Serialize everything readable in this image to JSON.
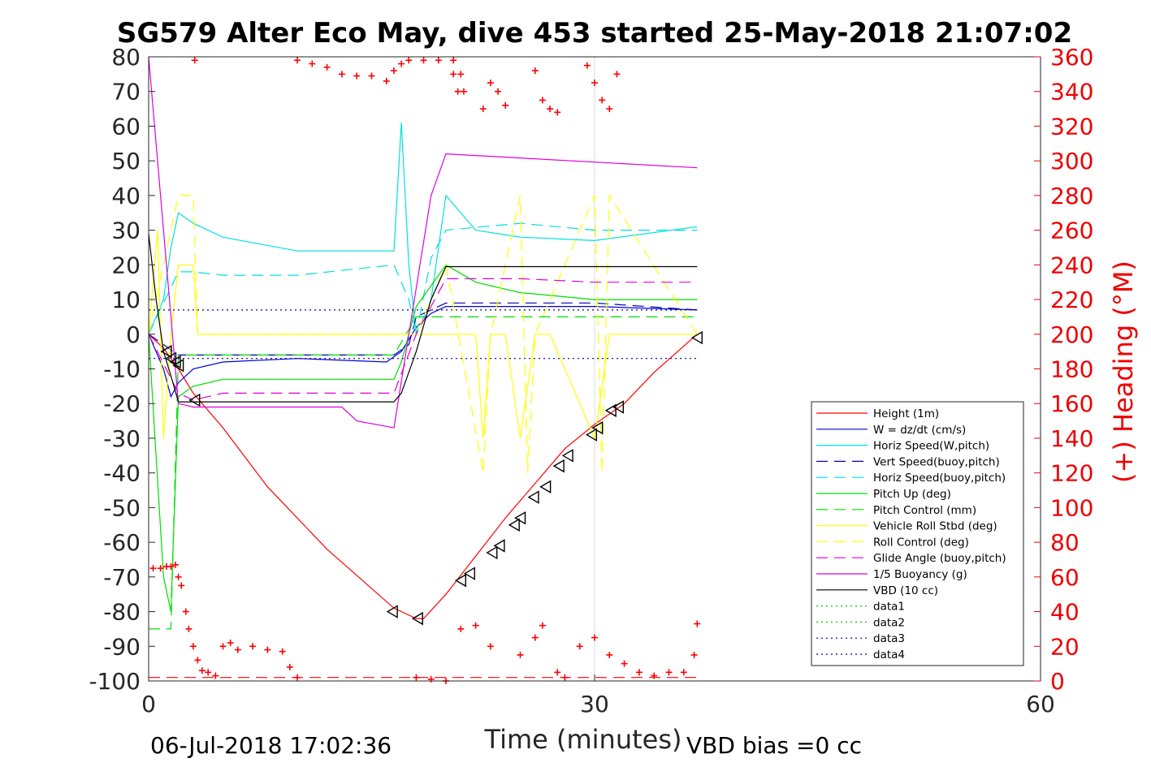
{
  "chart_data": {
    "type": "line",
    "title": "SG579 Alter Eco May, dive 453 started 25-May-2018 21:07:02",
    "xlabel": "Time (minutes)",
    "ylabel": "",
    "y2label": "(+) Heading (°M)",
    "xlim": [
      0,
      60
    ],
    "ylim": [
      -100,
      80
    ],
    "y2lim": [
      0,
      360
    ],
    "xticks": [
      0,
      30,
      60
    ],
    "yticks": [
      -100,
      -90,
      -80,
      -70,
      -60,
      -50,
      -40,
      -30,
      -20,
      -10,
      0,
      10,
      20,
      30,
      40,
      50,
      60,
      70,
      80
    ],
    "y2ticks": [
      0,
      20,
      40,
      60,
      80,
      100,
      120,
      140,
      160,
      180,
      200,
      220,
      240,
      260,
      280,
      300,
      320,
      340,
      360
    ],
    "grid": "x-only",
    "legend_position": "lower-right",
    "footer_left": "06-Jul-2018 17:02:36",
    "footer_right": "VBD bias =0 cc",
    "series": [
      {
        "name": "Height (1m)",
        "color": "#ff0000",
        "style": "solid",
        "axis": "left",
        "x": [
          0,
          1,
          2,
          3,
          5,
          8,
          12,
          16.5,
          18,
          18.5,
          20,
          22,
          24,
          26,
          28,
          30,
          32,
          34,
          36.9
        ],
        "y": [
          0,
          -4,
          -10,
          -17,
          -27,
          -44,
          -62,
          -79,
          -82,
          -82,
          -75,
          -64,
          -53,
          -43,
          -33,
          -26,
          -20,
          -11,
          0
        ]
      },
      {
        "name": "W = dz/dt (cm/s)",
        "color": "#0000dd",
        "style": "solid",
        "axis": "left",
        "x": [
          0,
          1,
          1.5,
          2,
          3,
          5,
          10,
          16,
          17,
          18,
          19,
          20,
          25,
          30,
          36.9
        ],
        "y": [
          0,
          -10,
          -18,
          -14,
          -10,
          -8,
          -7,
          -8,
          -5,
          2,
          6,
          8,
          8,
          8,
          7
        ]
      },
      {
        "name": "Horiz Speed(W,pitch)",
        "color": "#00e0e0",
        "style": "solid",
        "axis": "left",
        "x": [
          0,
          1,
          1.5,
          2,
          3,
          5,
          10,
          16.5,
          17,
          17.5,
          18,
          19,
          20,
          22,
          25,
          30,
          36.9
        ],
        "y": [
          0,
          10,
          25,
          35,
          32,
          28,
          24,
          24,
          61,
          20,
          0,
          10,
          40,
          30,
          28,
          27,
          31
        ]
      },
      {
        "name": "Vert Speed(buoy,pitch)",
        "color": "#0000aa",
        "style": "dashed",
        "axis": "left",
        "x": [
          0,
          2,
          5,
          16.5,
          17.5,
          18,
          20,
          25,
          30,
          36.9
        ],
        "y": [
          0,
          -6,
          -6,
          -6,
          -3,
          5,
          9,
          9,
          9,
          7
        ]
      },
      {
        "name": "Horiz Speed(buoy,pitch)",
        "color": "#00e0e0",
        "style": "dashed",
        "axis": "left",
        "x": [
          0,
          2,
          3,
          5,
          10,
          16.5,
          17.5,
          18,
          19,
          20,
          25,
          30,
          36.9
        ],
        "y": [
          0,
          18,
          18,
          17,
          17,
          20,
          10,
          0,
          22,
          30,
          32,
          30,
          30
        ]
      },
      {
        "name": "Pitch Up (deg)",
        "color": "#00dd00",
        "style": "solid",
        "axis": "left",
        "x": [
          0,
          1,
          1.5,
          2,
          3,
          5,
          10,
          16.5,
          17,
          18,
          19,
          20,
          22,
          25,
          30,
          36.9
        ],
        "y": [
          0,
          -70,
          -80,
          -18,
          -15,
          -13,
          -13,
          -13,
          -8,
          8,
          14,
          20,
          15,
          12,
          10,
          10
        ]
      },
      {
        "name": "Pitch Control (mm)",
        "color": "#00dd00",
        "style": "dashed",
        "axis": "left",
        "x": [
          0,
          1,
          1.5,
          2,
          5,
          10,
          16.5,
          18,
          20,
          25,
          30,
          36.9
        ],
        "y": [
          -85,
          -85,
          -85,
          -6,
          -6,
          -6,
          -6,
          5,
          5,
          5,
          5,
          5
        ]
      },
      {
        "name": "Vehicle Roll Stbd (deg)",
        "color": "#ffff00",
        "style": "solid",
        "axis": "left",
        "x": [
          0,
          0.6,
          1,
          1.5,
          2,
          2.5,
          3,
          3.3,
          5,
          10,
          16.5,
          18,
          20,
          22,
          22.5,
          23,
          24,
          25,
          26,
          27,
          30,
          31,
          32,
          36.9
        ],
        "y": [
          0,
          30,
          -30,
          0,
          20,
          20,
          20,
          0,
          0,
          0,
          0,
          0,
          0,
          0,
          -30,
          0,
          0,
          -30,
          0,
          0,
          -30,
          0,
          0,
          0
        ]
      },
      {
        "name": "Roll Control (deg)",
        "color": "#ffff00",
        "style": "dashed",
        "axis": "left",
        "x": [
          0,
          2,
          2.5,
          3,
          3.3,
          5,
          16.5,
          18,
          20,
          22.5,
          23,
          25,
          25.5,
          26,
          30,
          30.5,
          31,
          36.9
        ],
        "y": [
          0,
          40,
          40,
          40,
          0,
          0,
          0,
          0,
          20,
          -40,
          0,
          40,
          -40,
          0,
          40,
          -40,
          40,
          0
        ]
      },
      {
        "name": "Glide Angle (buoy,pitch)",
        "color": "#dd00dd",
        "style": "dashed",
        "axis": "left",
        "x": [
          0,
          2,
          3,
          5,
          10,
          16.5,
          18,
          20,
          25,
          30,
          36.9
        ],
        "y": [
          0,
          -17,
          -19,
          -17,
          -17,
          -17,
          0,
          16,
          16,
          15,
          15
        ]
      },
      {
        "name": "1/5 Buoyancy (g)",
        "color": "#dd00dd",
        "style": "solid",
        "axis": "left",
        "x": [
          0,
          1,
          2,
          3,
          5,
          10,
          13,
          14,
          16.5,
          17.5,
          19,
          20,
          36.9
        ],
        "y": [
          80,
          30,
          -20,
          -21,
          -21,
          -21,
          -21,
          -25,
          -27,
          0,
          40,
          52,
          48
        ]
      },
      {
        "name": "VBD (10 cc)",
        "color": "#000000",
        "style": "solid",
        "axis": "left",
        "x": [
          0,
          0.5,
          1,
          1.5,
          2,
          3,
          5,
          10,
          16.5,
          17,
          18,
          19,
          20,
          25,
          30,
          36.9
        ],
        "y": [
          29,
          10,
          -5,
          -12,
          -19.5,
          -19.5,
          -19.5,
          -19.5,
          -19.5,
          -17,
          -5,
          10,
          19.5,
          19.5,
          19.5,
          19.5
        ]
      },
      {
        "name": "data1",
        "color": "#00cc00",
        "style": "dotted",
        "axis": "left",
        "x": [],
        "y": []
      },
      {
        "name": "data2",
        "color": "#00cc00",
        "style": "dotted",
        "axis": "left",
        "x": [],
        "y": []
      },
      {
        "name": "data3",
        "color": "#000088",
        "style": "dotted",
        "axis": "left",
        "x": [
          0,
          36.9
        ],
        "y": [
          7,
          7
        ]
      },
      {
        "name": "data4",
        "color": "#000088",
        "style": "dotted",
        "axis": "left",
        "x": [
          0,
          36.9
        ],
        "y": [
          -7,
          -7
        ]
      }
    ],
    "reference_lines": [
      {
        "color": "#ff0000",
        "style": "dashed",
        "axis": "left",
        "x": [
          0,
          36.9
        ],
        "y": [
          -99,
          -99
        ]
      }
    ],
    "heading_points": {
      "axis": "right",
      "color": "#ff0000",
      "marker": "+",
      "x": [
        0.3,
        0.8,
        1.2,
        1.5,
        1.8,
        2.0,
        2.2,
        2.5,
        2.7,
        3.0,
        3.3,
        3.6,
        4,
        4.5,
        5,
        5.5,
        6,
        7,
        8,
        9,
        9.5,
        10,
        3.1,
        10,
        11,
        12,
        13,
        14,
        15,
        16,
        16.5,
        17,
        17.5,
        18.5,
        19.5,
        20.5,
        20.8,
        20.5,
        21,
        21.2,
        22.5,
        23,
        23.5,
        24,
        26,
        26.5,
        27,
        27.5,
        29.5,
        30,
        30.5,
        31,
        31.5,
        18,
        19,
        20,
        21,
        22,
        23,
        25,
        26,
        26.5,
        27.5,
        28,
        29,
        30,
        31,
        32,
        33,
        34,
        35,
        36,
        36.7,
        36.9
      ],
      "y": [
        65,
        65,
        66,
        66,
        67,
        60,
        55,
        40,
        30,
        20,
        12,
        6,
        5,
        3,
        20,
        22,
        18,
        20,
        18,
        17,
        8,
        2,
        358,
        358,
        356,
        354,
        350,
        349,
        349,
        346,
        352,
        356,
        358,
        358,
        358,
        350,
        340,
        358,
        350,
        340,
        330,
        345,
        340,
        332,
        352,
        335,
        330,
        328,
        355,
        345,
        335,
        330,
        350,
        2,
        1,
        0,
        30,
        32,
        20,
        15,
        25,
        32,
        5,
        2,
        20,
        25,
        15,
        10,
        5,
        3,
        5,
        5,
        15,
        33
      ]
    },
    "triangle_markers": {
      "color": "#000000",
      "marker": "triangle",
      "axis": "left",
      "x": [
        1.2,
        1.5,
        1.8,
        2.0,
        3.1,
        16.4,
        18.1,
        21,
        21.6,
        23.1,
        23.6,
        24.6,
        25,
        25.9,
        26.7,
        27.6,
        28.2,
        29.8,
        30.2,
        31.1,
        31.6,
        36.9
      ],
      "y": [
        -5,
        -7,
        -8,
        -9,
        -19,
        -80,
        -82,
        -71,
        -69,
        -63,
        -61,
        -55,
        -53,
        -47,
        -44,
        -38,
        -35,
        -29,
        -27,
        -22,
        -21,
        -1
      ]
    }
  }
}
